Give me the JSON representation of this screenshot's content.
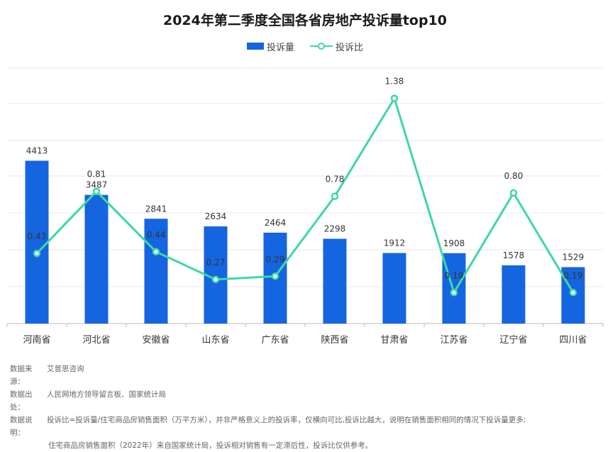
{
  "colors": {
    "bar": "#1565e0",
    "line": "#3ed9a0",
    "grid": "#e9e9e9",
    "axis": "#bbbbbb"
  },
  "chart_data": {
    "type": "bar",
    "title": "2024年第二季度全国各省房地产投诉量top10",
    "categories": [
      "河南省",
      "河北省",
      "安徽省",
      "山东省",
      "广东省",
      "陕西省",
      "甘肃省",
      "江苏省",
      "辽宁省",
      "四川省"
    ],
    "series": [
      {
        "name": "投诉量",
        "type": "bar",
        "values": [
          4413,
          3487,
          2841,
          2634,
          2464,
          2298,
          1912,
          1908,
          1578,
          1529
        ],
        "value_labels": [
          "4413",
          "3487",
          "2841",
          "2634",
          "2464",
          "2298",
          "1912",
          "1908",
          "1578",
          "1529"
        ]
      },
      {
        "name": "投诉比",
        "type": "line",
        "values": [
          0.43,
          0.81,
          0.44,
          0.27,
          0.29,
          0.78,
          1.38,
          0.19,
          0.8,
          0.19
        ],
        "value_labels": [
          "0.43",
          "0.81",
          "0.44",
          "0.27",
          "0.29",
          "0.78",
          "1.38",
          "0.19",
          "0.80",
          "0.19"
        ]
      }
    ],
    "legend_position": "top-center",
    "grid": true,
    "axes_visible": false
  },
  "notes": {
    "source_label": "数据来源：",
    "source_text": "艾普思咨询",
    "origin_label": "数据出处：",
    "origin_text": "人民网地方领导留言板、国家统计局",
    "explain_label": "数据说明：",
    "explain_text1": "投诉比=投诉量/住宅商品房销售面积（万平方米），并非严格意义上的投诉率，仅横向可比,投诉比越大，说明在销售面积相同的情况下投诉量更多;",
    "explain_text2": "住宅商品房销售面积（2022年）来自国家统计局，投诉相对销售有一定滞后性，投诉比仅供参考。"
  }
}
